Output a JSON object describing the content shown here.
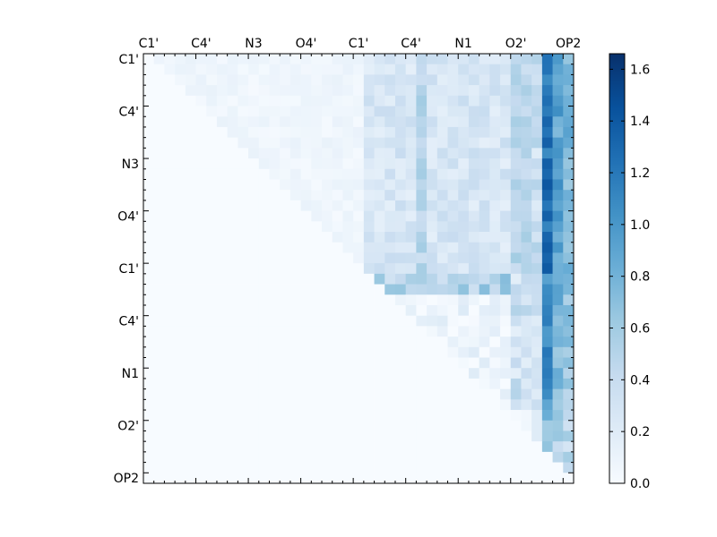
{
  "chart_data": {
    "type": "heatmap",
    "title": "",
    "xlabel": "",
    "ylabel": "",
    "x_tick_labels": [
      "C1'",
      "C4'",
      "N3",
      "O4'",
      "C1'",
      "C4'",
      "N1",
      "O2'",
      "OP2"
    ],
    "y_tick_labels": [
      "C1'",
      "C4'",
      "N3",
      "O4'",
      "C1'",
      "C4'",
      "N1",
      "O2'",
      "OP2"
    ],
    "colorbar": {
      "colormap": "Blues",
      "range": [
        0.0,
        1.66
      ],
      "tick_labels": [
        "0.0",
        "0.2",
        "0.4",
        "0.6",
        "0.8",
        "1.0",
        "1.2",
        "1.4",
        "1.6"
      ],
      "tick_values": [
        0.0,
        0.2,
        0.4,
        0.6,
        0.8,
        1.0,
        1.2,
        1.4,
        1.6
      ]
    },
    "grid_size": 41,
    "structure": "upper-triangular",
    "blocks": [
      {
        "rows": "0-20",
        "cols": "1-20",
        "approx_value_range": [
          0.02,
          0.15
        ]
      },
      {
        "rows": "0-20",
        "cols": "20-37",
        "approx_value_range": [
          0.15,
          0.55
        ]
      },
      {
        "rows": "0-40",
        "cols": "37-40",
        "approx_value_range": [
          0.3,
          1.66
        ]
      },
      {
        "rows": "21-33",
        "cols": "22-37",
        "approx_value_range": [
          0.05,
          0.9
        ]
      }
    ],
    "colors": {
      "cmap_stops": [
        "#f7fbff",
        "#deebf7",
        "#c6dbef",
        "#9ecae1",
        "#6baed6",
        "#4292c6",
        "#2171b5",
        "#08519c",
        "#08306b"
      ]
    }
  }
}
